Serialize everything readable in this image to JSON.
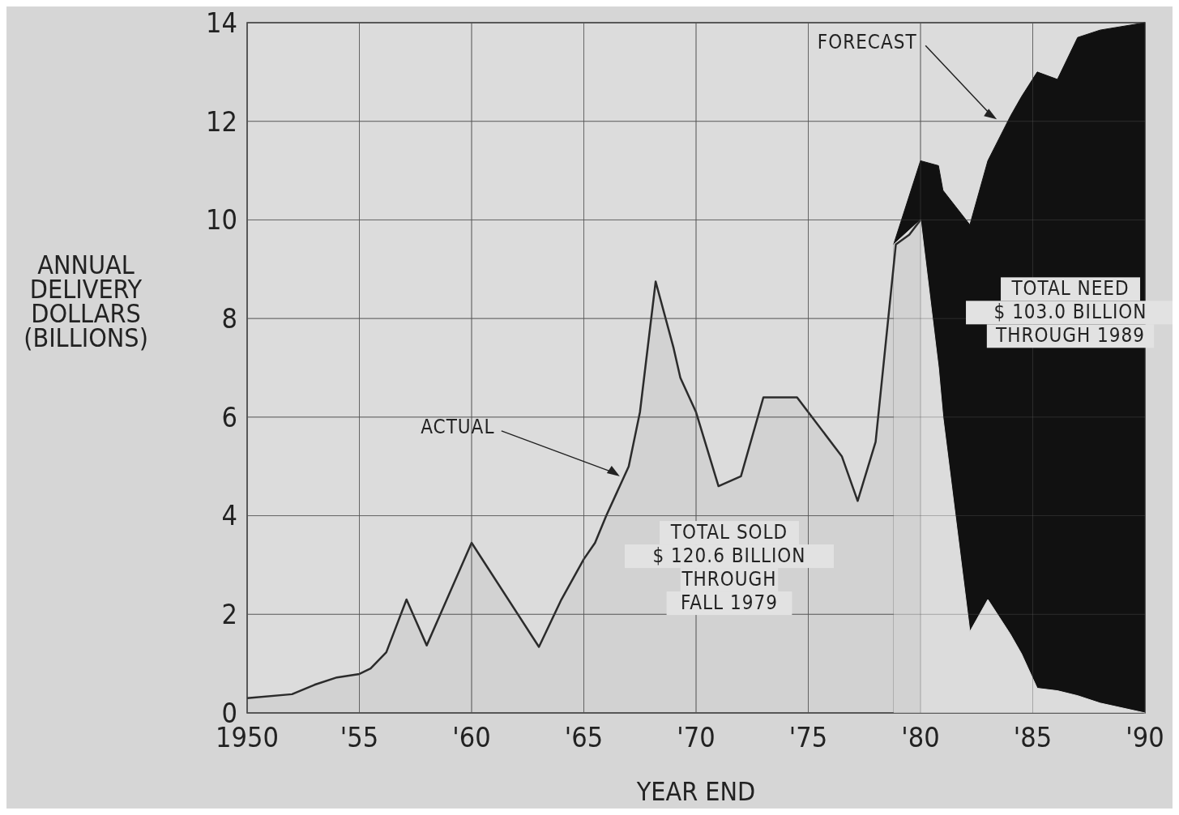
{
  "chart_data": {
    "type": "area",
    "xlabel": "YEAR END",
    "ylabel": "ANNUAL\nDELIVERY\nDOLLARS\n(BILLIONS)",
    "xlim": [
      1950,
      1990
    ],
    "ylim": [
      0,
      14
    ],
    "xticks": [
      {
        "value": 1950,
        "label": "1950"
      },
      {
        "value": 1955,
        "label": "'55"
      },
      {
        "value": 1960,
        "label": "'60"
      },
      {
        "value": 1965,
        "label": "'65"
      },
      {
        "value": 1970,
        "label": "'70"
      },
      {
        "value": 1975,
        "label": "'75"
      },
      {
        "value": 1980,
        "label": "'80"
      },
      {
        "value": 1985,
        "label": "'85"
      },
      {
        "value": 1990,
        "label": "'90"
      }
    ],
    "yticks": [
      0,
      2,
      4,
      6,
      8,
      10,
      12,
      14
    ],
    "grid": true,
    "series": [
      {
        "color": "#111111",
        "x": [
          1978.8,
          1980,
          1980.8,
          1981,
          1982.2,
          1983,
          1984,
          1984.5,
          1985.2,
          1986.1,
          1987,
          1988,
          1990
        ],
        "values": [
          9.5,
          11.2,
          11.1,
          10.6,
          9.9,
          11.2,
          12.1,
          12.5,
          13.0,
          12.85,
          13.7,
          13.85,
          14.0
        ]
      },
      {
        "color": "#dcdcdc",
        "x": [
          1978.8,
          1980,
          1980.8,
          1981,
          1982.2,
          1983,
          1984,
          1984.5,
          1985.2,
          1986.1,
          1987,
          1988,
          1990
        ],
        "values": [
          9.5,
          10.0,
          7.0,
          6.0,
          1.65,
          2.3,
          1.6,
          1.2,
          0.5,
          0.45,
          0.35,
          0.2,
          0.0
        ]
      },
      {
        "color": "#2b2b2b",
        "x": [
          1950,
          1952,
          1953,
          1954,
          1955,
          1955.5,
          1956.2,
          1957.1,
          1958,
          1960,
          1963,
          1964,
          1965,
          1965.5,
          1966,
          1967,
          1967.5,
          1968.2,
          1969,
          1969.3,
          1970,
          1971,
          1972,
          1973,
          1974.5,
          1976.5,
          1977.2,
          1978,
          1978.9,
          1979.5,
          1980
        ],
        "values": [
          0.3,
          0.38,
          0.57,
          0.72,
          0.79,
          0.9,
          1.23,
          2.3,
          1.37,
          3.45,
          1.34,
          2.3,
          3.12,
          3.45,
          4.0,
          5.0,
          6.1,
          8.75,
          7.4,
          6.8,
          6.1,
          4.6,
          4.8,
          6.4,
          6.4,
          5.2,
          4.3,
          5.5,
          9.5,
          9.7,
          10.0
        ]
      }
    ],
    "annotations": [
      {
        "text": "ACTUAL",
        "x": 1966.6,
        "y": 4.8
      },
      "FORECAST",
      "TOTAL SOLD\n$ 120.6 BILLION\nTHROUGH\nFALL 1979",
      "TOTAL NEED\n$ 103.0 BILLION\nTHROUGH 1989"
    ]
  }
}
